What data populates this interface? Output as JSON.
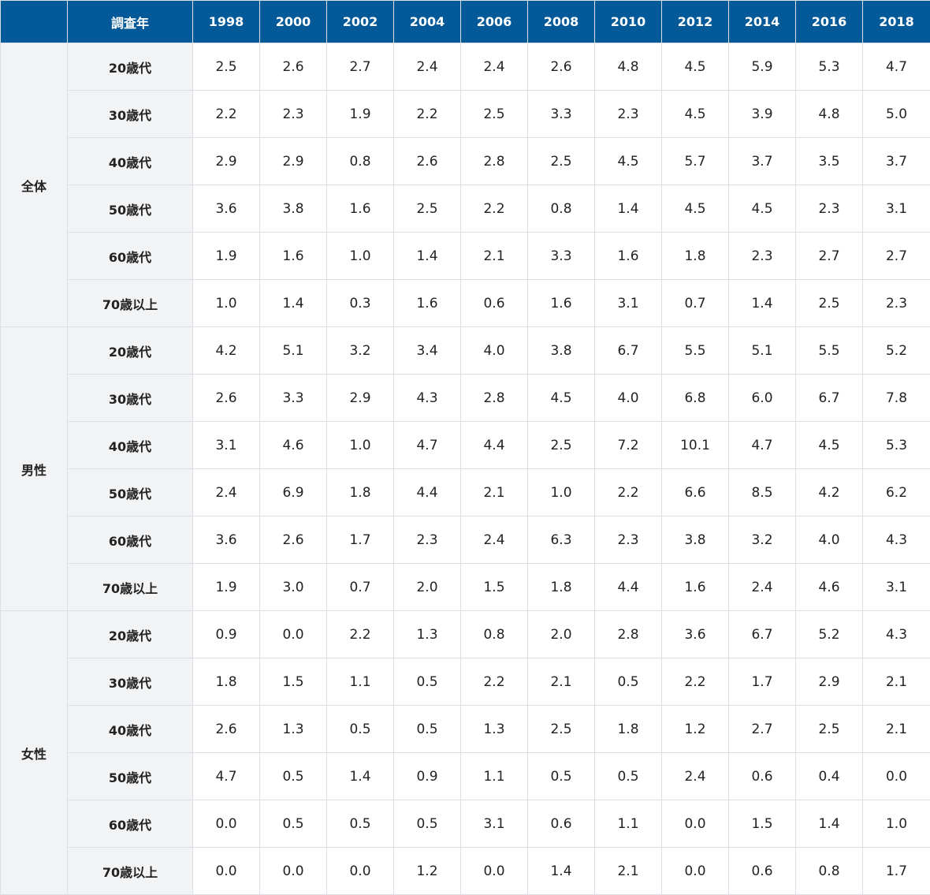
{
  "header": {
    "corner": "",
    "year_label": "調査年",
    "years": [
      "1998",
      "2000",
      "2002",
      "2004",
      "2006",
      "2008",
      "2010",
      "2012",
      "2014",
      "2016",
      "2018"
    ]
  },
  "groups": [
    {
      "label": "全体",
      "rows": [
        {
          "age": "20歳代",
          "values": [
            "2.5",
            "2.6",
            "2.7",
            "2.4",
            "2.4",
            "2.6",
            "4.8",
            "4.5",
            "5.9",
            "5.3",
            "4.7"
          ]
        },
        {
          "age": "30歳代",
          "values": [
            "2.2",
            "2.3",
            "1.9",
            "2.2",
            "2.5",
            "3.3",
            "2.3",
            "4.5",
            "3.9",
            "4.8",
            "5.0"
          ]
        },
        {
          "age": "40歳代",
          "values": [
            "2.9",
            "2.9",
            "0.8",
            "2.6",
            "2.8",
            "2.5",
            "4.5",
            "5.7",
            "3.7",
            "3.5",
            "3.7"
          ]
        },
        {
          "age": "50歳代",
          "values": [
            "3.6",
            "3.8",
            "1.6",
            "2.5",
            "2.2",
            "0.8",
            "1.4",
            "4.5",
            "4.5",
            "2.3",
            "3.1"
          ]
        },
        {
          "age": "60歳代",
          "values": [
            "1.9",
            "1.6",
            "1.0",
            "1.4",
            "2.1",
            "3.3",
            "1.6",
            "1.8",
            "2.3",
            "2.7",
            "2.7"
          ]
        },
        {
          "age": "70歳以上",
          "values": [
            "1.0",
            "1.4",
            "0.3",
            "1.6",
            "0.6",
            "1.6",
            "3.1",
            "0.7",
            "1.4",
            "2.5",
            "2.3"
          ]
        }
      ]
    },
    {
      "label": "男性",
      "rows": [
        {
          "age": "20歳代",
          "values": [
            "4.2",
            "5.1",
            "3.2",
            "3.4",
            "4.0",
            "3.8",
            "6.7",
            "5.5",
            "5.1",
            "5.5",
            "5.2"
          ]
        },
        {
          "age": "30歳代",
          "values": [
            "2.6",
            "3.3",
            "2.9",
            "4.3",
            "2.8",
            "4.5",
            "4.0",
            "6.8",
            "6.0",
            "6.7",
            "7.8"
          ]
        },
        {
          "age": "40歳代",
          "values": [
            "3.1",
            "4.6",
            "1.0",
            "4.7",
            "4.4",
            "2.5",
            "7.2",
            "10.1",
            "4.7",
            "4.5",
            "5.3"
          ]
        },
        {
          "age": "50歳代",
          "values": [
            "2.4",
            "6.9",
            "1.8",
            "4.4",
            "2.1",
            "1.0",
            "2.2",
            "6.6",
            "8.5",
            "4.2",
            "6.2"
          ]
        },
        {
          "age": "60歳代",
          "values": [
            "3.6",
            "2.6",
            "1.7",
            "2.3",
            "2.4",
            "6.3",
            "2.3",
            "3.8",
            "3.2",
            "4.0",
            "4.3"
          ]
        },
        {
          "age": "70歳以上",
          "values": [
            "1.9",
            "3.0",
            "0.7",
            "2.0",
            "1.5",
            "1.8",
            "4.4",
            "1.6",
            "2.4",
            "4.6",
            "3.1"
          ]
        }
      ]
    },
    {
      "label": "女性",
      "rows": [
        {
          "age": "20歳代",
          "values": [
            "0.9",
            "0.0",
            "2.2",
            "1.3",
            "0.8",
            "2.0",
            "2.8",
            "3.6",
            "6.7",
            "5.2",
            "4.3"
          ]
        },
        {
          "age": "30歳代",
          "values": [
            "1.8",
            "1.5",
            "1.1",
            "0.5",
            "2.2",
            "2.1",
            "0.5",
            "2.2",
            "1.7",
            "2.9",
            "2.1"
          ]
        },
        {
          "age": "40歳代",
          "values": [
            "2.6",
            "1.3",
            "0.5",
            "0.5",
            "1.3",
            "2.5",
            "1.8",
            "1.2",
            "2.7",
            "2.5",
            "2.1"
          ]
        },
        {
          "age": "50歳代",
          "values": [
            "4.7",
            "0.5",
            "1.4",
            "0.9",
            "1.1",
            "0.5",
            "0.5",
            "2.4",
            "0.6",
            "0.4",
            "0.0"
          ]
        },
        {
          "age": "60歳代",
          "values": [
            "0.0",
            "0.5",
            "0.5",
            "0.5",
            "3.1",
            "0.6",
            "1.1",
            "0.0",
            "1.5",
            "1.4",
            "1.0"
          ]
        },
        {
          "age": "70歳以上",
          "values": [
            "0.0",
            "0.0",
            "0.0",
            "1.2",
            "0.0",
            "1.4",
            "2.1",
            "0.0",
            "0.6",
            "0.8",
            "1.7"
          ]
        }
      ]
    }
  ],
  "colors": {
    "header_bg": "#045a99",
    "header_text": "#ffffff",
    "label_bg": "#f2f3f5",
    "border": "#dcdfe3"
  }
}
